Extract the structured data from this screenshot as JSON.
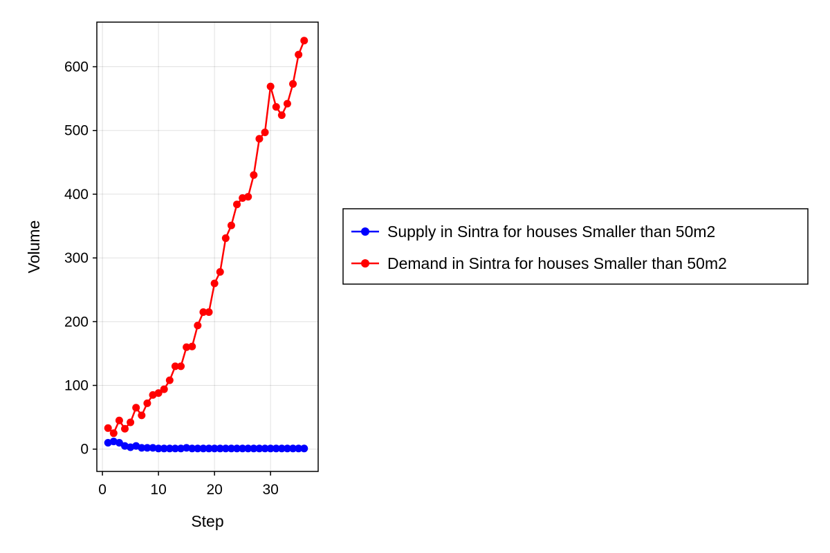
{
  "chart_data": {
    "type": "line",
    "xlabel": "Step",
    "ylabel": "Volume",
    "xlim": [
      -1,
      38.5
    ],
    "ylim": [
      -35,
      670
    ],
    "x_ticks": [
      0,
      10,
      20,
      30
    ],
    "y_ticks": [
      0,
      100,
      200,
      300,
      400,
      500,
      600
    ],
    "grid": true,
    "legend_position": "right",
    "x": [
      1,
      2,
      3,
      4,
      5,
      6,
      7,
      8,
      9,
      10,
      11,
      12,
      13,
      14,
      15,
      16,
      17,
      18,
      19,
      20,
      21,
      22,
      23,
      24,
      25,
      26,
      27,
      28,
      29,
      30,
      31,
      32,
      33,
      34,
      35,
      36
    ],
    "series": [
      {
        "name": "Supply in Sintra for houses Smaller than 50m2",
        "color": "#0000ff",
        "values": [
          10,
          12,
          10,
          5,
          3,
          5,
          2,
          2,
          2,
          1,
          1,
          1,
          1,
          1,
          2,
          1,
          1,
          1,
          1,
          1,
          1,
          1,
          1,
          1,
          1,
          1,
          1,
          1,
          1,
          1,
          1,
          1,
          1,
          1,
          1,
          1
        ]
      },
      {
        "name": "Demand in Sintra for houses Smaller than 50m2",
        "color": "#ff0000",
        "values": [
          33,
          25,
          45,
          32,
          42,
          65,
          53,
          72,
          85,
          88,
          94,
          108,
          130,
          130,
          160,
          161,
          194,
          215,
          215,
          260,
          278,
          331,
          351,
          384,
          394,
          396,
          430,
          487,
          497,
          569,
          537,
          524,
          542,
          573,
          619,
          641
        ]
      }
    ]
  }
}
